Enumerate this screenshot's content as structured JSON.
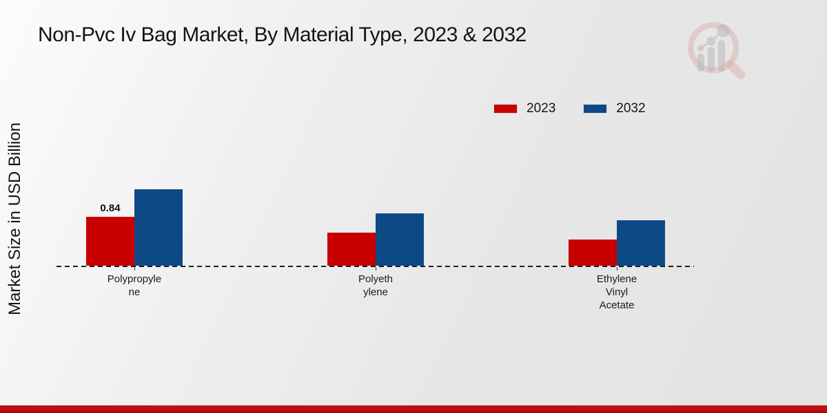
{
  "chart_data": {
    "type": "bar",
    "title": "Non-Pvc Iv Bag Market, By Material Type, 2023 & 2032",
    "ylabel": "Market Size in USD Billion",
    "xlabel": "",
    "categories": [
      "Polypropyle\nne",
      "Polyeth\nylene",
      "Ethylene\nVinyl\nAcetate"
    ],
    "categories_full": [
      "Polypropylene",
      "Polyethylene",
      "Ethylene Vinyl Acetate"
    ],
    "series": [
      {
        "name": "2023",
        "color": "#c80000",
        "values": [
          0.84,
          0.56,
          0.45
        ],
        "data_labels": [
          "0.84",
          null,
          null
        ]
      },
      {
        "name": "2032",
        "color": "#0d4a85",
        "values": [
          1.31,
          0.89,
          0.78
        ],
        "data_labels": [
          null,
          null,
          null
        ]
      }
    ],
    "unit": "USD Billion",
    "baseline_value": 0,
    "grid": false,
    "legend_position": "top-right",
    "axis_style": "dashed-baseline-only",
    "note": "Only the first 2023 bar (Polypropylene) shows an explicit data label of 0.84; other values estimated from bar heights."
  },
  "colors": {
    "series_2023": "#c80000",
    "series_2032": "#0d4a85",
    "footer_top": "#c20d11",
    "footer_bottom": "#8e0d10",
    "text": "#141414"
  },
  "watermark": "market-research-future-logo"
}
